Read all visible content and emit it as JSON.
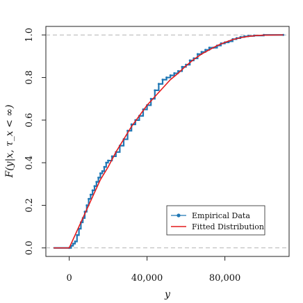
{
  "chart_data": {
    "type": "line",
    "title": "",
    "xlabel": "y",
    "ylabel": "F(y|x, τ_x < ∞)",
    "xlim": [
      -12000,
      113000
    ],
    "ylim": [
      -0.04,
      1.04
    ],
    "xticks": [
      {
        "value": 0,
        "label": "0"
      },
      {
        "value": 40000,
        "label": "40,000"
      },
      {
        "value": 80000,
        "label": "80,000"
      }
    ],
    "yticks": [
      {
        "value": 0.0,
        "label": "0.0"
      },
      {
        "value": 0.2,
        "label": "0.2"
      },
      {
        "value": 0.4,
        "label": "0.4"
      },
      {
        "value": 0.6,
        "label": "0.6"
      },
      {
        "value": 0.8,
        "label": "0.8"
      },
      {
        "value": 1.0,
        "label": "1.0"
      }
    ],
    "reference_lines": [
      0,
      1
    ],
    "grid": false,
    "legend": {
      "position": "bottom-right",
      "entries": [
        {
          "name": "Empirical Data",
          "color": "#1f77b4",
          "marker": "point"
        },
        {
          "name": "Fitted Distribution",
          "color": "#e41a1c",
          "marker": "line"
        }
      ]
    },
    "series": [
      {
        "name": "Empirical Data",
        "color": "#1f77b4",
        "x": [
          -8000,
          0,
          1000,
          2000,
          3000,
          4000,
          5000,
          6000,
          7000,
          8000,
          9000,
          10000,
          11000,
          12000,
          13000,
          14000,
          15000,
          16000,
          17000,
          18000,
          19000,
          20000,
          22000,
          24000,
          26000,
          28000,
          30000,
          32000,
          34000,
          36000,
          38000,
          40000,
          42000,
          44000,
          46000,
          48000,
          50000,
          52000,
          54000,
          56000,
          58000,
          60000,
          62000,
          64000,
          66000,
          68000,
          70000,
          72000,
          74000,
          76000,
          78000,
          80000,
          82000,
          84000,
          86000,
          88000,
          90000,
          92000,
          95000,
          100000,
          110000
        ],
        "y": [
          0.0,
          0.0,
          0.01,
          0.02,
          0.03,
          0.06,
          0.09,
          0.12,
          0.14,
          0.17,
          0.2,
          0.23,
          0.25,
          0.27,
          0.29,
          0.31,
          0.33,
          0.35,
          0.36,
          0.38,
          0.4,
          0.41,
          0.43,
          0.45,
          0.48,
          0.51,
          0.55,
          0.58,
          0.6,
          0.62,
          0.65,
          0.67,
          0.7,
          0.74,
          0.77,
          0.79,
          0.8,
          0.81,
          0.82,
          0.83,
          0.85,
          0.86,
          0.88,
          0.89,
          0.91,
          0.92,
          0.93,
          0.94,
          0.94,
          0.95,
          0.96,
          0.965,
          0.97,
          0.98,
          0.985,
          0.99,
          0.993,
          0.995,
          0.997,
          1.0,
          1.0
        ]
      },
      {
        "name": "Fitted Distribution",
        "color": "#e41a1c",
        "x": [
          -8000,
          0,
          2000,
          4000,
          6000,
          8000,
          10000,
          12000,
          14000,
          16000,
          18000,
          20000,
          24000,
          28000,
          32000,
          36000,
          40000,
          44000,
          48000,
          52000,
          56000,
          60000,
          64000,
          68000,
          72000,
          76000,
          80000,
          84000,
          88000,
          92000,
          96000,
          100000,
          110000
        ],
        "y": [
          0.0,
          0.0,
          0.04,
          0.08,
          0.12,
          0.16,
          0.2,
          0.24,
          0.28,
          0.32,
          0.35,
          0.38,
          0.45,
          0.51,
          0.57,
          0.62,
          0.67,
          0.71,
          0.75,
          0.79,
          0.82,
          0.855,
          0.885,
          0.91,
          0.93,
          0.95,
          0.965,
          0.978,
          0.987,
          0.993,
          0.997,
          0.999,
          1.0
        ]
      }
    ]
  }
}
